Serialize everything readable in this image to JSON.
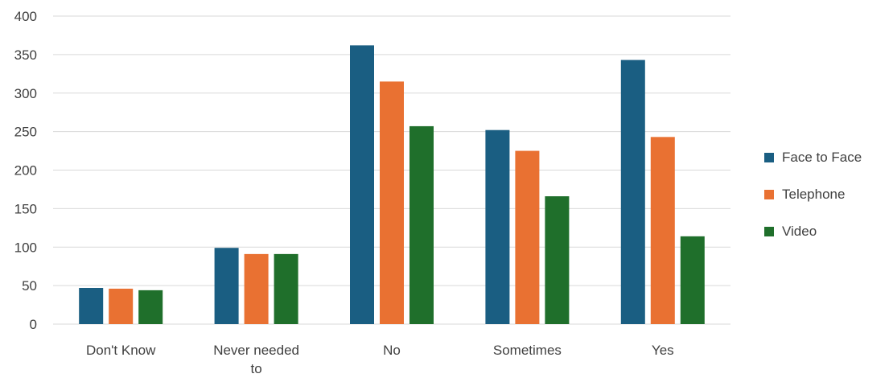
{
  "chart_data": {
    "type": "bar",
    "categories": [
      "Don't Know",
      "Never needed to",
      "No",
      "Sometimes",
      "Yes"
    ],
    "category_label_lines": [
      [
        "Don't Know"
      ],
      [
        "Never needed",
        "to"
      ],
      [
        "No"
      ],
      [
        "Sometimes"
      ],
      [
        "Yes"
      ]
    ],
    "series": [
      {
        "name": "Face to Face",
        "color": "#1a5e82",
        "values": [
          47,
          99,
          362,
          252,
          343
        ]
      },
      {
        "name": "Telephone",
        "color": "#e97132",
        "values": [
          46,
          91,
          315,
          225,
          243
        ]
      },
      {
        "name": "Video",
        "color": "#1f6f2b",
        "values": [
          44,
          91,
          257,
          166,
          114
        ]
      }
    ],
    "ylim": [
      0,
      400
    ],
    "yticks": [
      0,
      50,
      100,
      150,
      200,
      250,
      300,
      350,
      400
    ],
    "grid": true,
    "legend_position": "right",
    "title": "",
    "xlabel": "",
    "ylabel": ""
  }
}
